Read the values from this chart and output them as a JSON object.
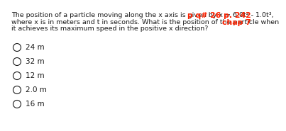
{
  "question_line1": "The position of a particle moving along the x axis is given by x = 6.0t² - 1.0t³,",
  "question_line2": "where x is in meters and t in seconds. What is the position of the particle when",
  "question_line3": "it achieves its maximum speed in the positive x direction?",
  "options": [
    "24 m",
    "32 m",
    "12 m",
    "2.0 m",
    "16 m"
  ],
  "ref_line1": "p q# 26 p. 242",
  "ref_line2": "chap 7",
  "bg_color": "#ffffff",
  "text_color": "#1a1a1a",
  "ref_color": "#ff2200",
  "question_fontsize": 6.8,
  "option_fontsize": 7.5,
  "ref_fontsize": 7.8
}
